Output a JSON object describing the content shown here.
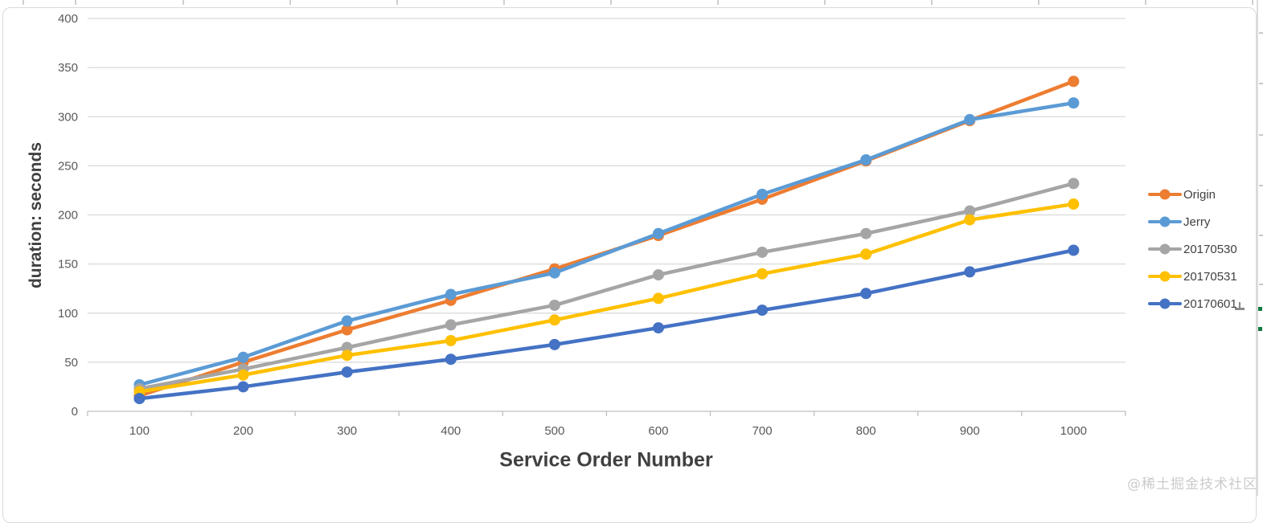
{
  "watermark": {
    "text": "@稀土掘金技术社区"
  },
  "chart_data": {
    "type": "line",
    "title": "",
    "xlabel": "Service Order Number",
    "ylabel": "duration: seconds",
    "x": [
      100,
      200,
      300,
      400,
      500,
      600,
      700,
      800,
      900,
      1000
    ],
    "ylim": [
      0,
      400
    ],
    "y_ticks": [
      0,
      50,
      100,
      150,
      200,
      250,
      300,
      350,
      400
    ],
    "grid": true,
    "legend_position": "right",
    "axis_tick_label_color": "#595959",
    "gridline_color": "#d9d9d9",
    "series": [
      {
        "name": "Origin",
        "color": "#ED7D31",
        "values": [
          16,
          50,
          83,
          113,
          145,
          179,
          216,
          255,
          296,
          336
        ]
      },
      {
        "name": "Jerry",
        "color": "#5B9BD5",
        "values": [
          27,
          55,
          92,
          119,
          141,
          181,
          221,
          256,
          297,
          314
        ]
      },
      {
        "name": "20170530",
        "color": "#A5A5A5",
        "values": [
          23,
          43,
          65,
          88,
          108,
          139,
          162,
          181,
          204,
          232
        ]
      },
      {
        "name": "20170531",
        "color": "#FFC000",
        "values": [
          20,
          37,
          57,
          72,
          93,
          115,
          140,
          160,
          195,
          211
        ]
      },
      {
        "name": "20170601",
        "color": "#4472C4",
        "values": [
          13,
          25,
          40,
          53,
          68,
          85,
          103,
          120,
          142,
          164
        ]
      }
    ]
  }
}
